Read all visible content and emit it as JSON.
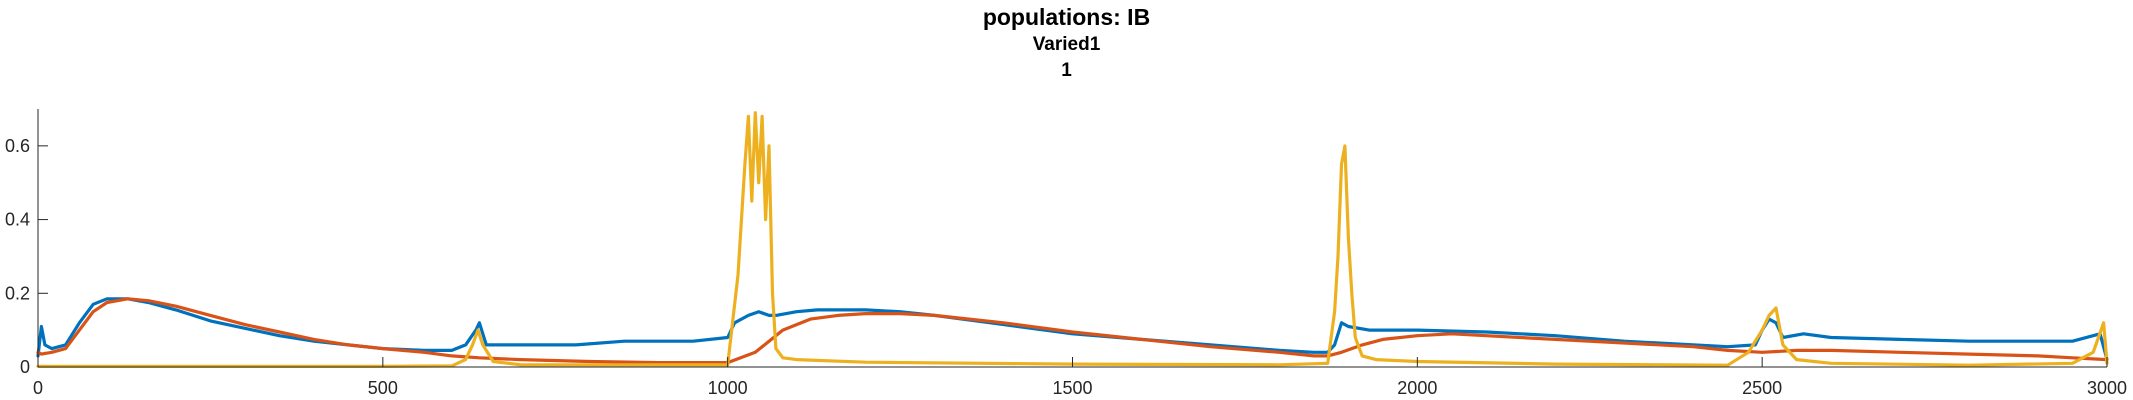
{
  "title": {
    "line1": "populations: IB",
    "line2": "Varied1",
    "line3": "1"
  },
  "colors": {
    "series1": "#0072BD",
    "series2": "#D95319",
    "series3": "#EDB120",
    "axis": "#262626"
  },
  "chart_data": {
    "type": "line",
    "title": "populations: IB",
    "subtitle": "Varied1 / 1",
    "xlabel": "",
    "ylabel": "",
    "xlim": [
      0,
      3000
    ],
    "ylim": [
      0,
      0.7
    ],
    "grid": false,
    "legend": "none",
    "xticks": [
      0,
      500,
      1000,
      1500,
      2000,
      2500,
      3000
    ],
    "yticks": [
      0,
      0.2,
      0.4,
      0.6
    ],
    "xtick_labels": [
      "0",
      "500",
      "1000",
      "1500",
      "2000",
      "2500",
      "3000"
    ],
    "ytick_labels": [
      "0",
      "0.2",
      "0.4",
      "0.6"
    ],
    "series": [
      {
        "color": "#0072BD",
        "x": [
          0,
          5,
          10,
          20,
          40,
          60,
          80,
          100,
          130,
          160,
          200,
          250,
          300,
          350,
          400,
          450,
          500,
          560,
          600,
          620,
          635,
          640,
          650,
          680,
          720,
          780,
          850,
          950,
          1000,
          1010,
          1030,
          1045,
          1060,
          1070,
          1100,
          1130,
          1160,
          1200,
          1250,
          1300,
          1400,
          1500,
          1600,
          1700,
          1800,
          1850,
          1870,
          1880,
          1890,
          1900,
          1930,
          1960,
          2000,
          2100,
          2200,
          2300,
          2400,
          2450,
          2490,
          2500,
          2510,
          2520,
          2530,
          2560,
          2600,
          2700,
          2800,
          2900,
          2950,
          2990,
          3000
        ],
        "y": [
          0.03,
          0.11,
          0.06,
          0.05,
          0.06,
          0.12,
          0.17,
          0.185,
          0.185,
          0.175,
          0.155,
          0.125,
          0.105,
          0.085,
          0.07,
          0.06,
          0.05,
          0.045,
          0.045,
          0.06,
          0.1,
          0.12,
          0.06,
          0.06,
          0.06,
          0.06,
          0.07,
          0.07,
          0.08,
          0.12,
          0.14,
          0.15,
          0.14,
          0.14,
          0.15,
          0.155,
          0.155,
          0.155,
          0.15,
          0.14,
          0.115,
          0.09,
          0.075,
          0.06,
          0.045,
          0.04,
          0.04,
          0.06,
          0.12,
          0.11,
          0.1,
          0.1,
          0.1,
          0.095,
          0.085,
          0.07,
          0.06,
          0.055,
          0.06,
          0.1,
          0.13,
          0.12,
          0.08,
          0.09,
          0.08,
          0.075,
          0.07,
          0.07,
          0.07,
          0.09,
          0.02
        ]
      },
      {
        "color": "#D95319",
        "x": [
          0,
          5,
          20,
          40,
          60,
          80,
          100,
          130,
          160,
          200,
          250,
          300,
          350,
          400,
          450,
          500,
          560,
          600,
          640,
          700,
          800,
          900,
          1000,
          1040,
          1080,
          1120,
          1160,
          1200,
          1250,
          1300,
          1400,
          1500,
          1600,
          1700,
          1800,
          1850,
          1870,
          1890,
          1920,
          1950,
          2000,
          2050,
          2100,
          2200,
          2300,
          2400,
          2450,
          2500,
          2550,
          2600,
          2700,
          2800,
          2900,
          2950,
          3000
        ],
        "y": [
          0.04,
          0.035,
          0.04,
          0.05,
          0.1,
          0.15,
          0.175,
          0.185,
          0.18,
          0.165,
          0.14,
          0.115,
          0.095,
          0.075,
          0.06,
          0.05,
          0.04,
          0.03,
          0.025,
          0.02,
          0.015,
          0.012,
          0.012,
          0.04,
          0.1,
          0.13,
          0.14,
          0.145,
          0.145,
          0.14,
          0.12,
          0.095,
          0.075,
          0.055,
          0.04,
          0.03,
          0.03,
          0.04,
          0.06,
          0.075,
          0.085,
          0.09,
          0.085,
          0.075,
          0.065,
          0.055,
          0.045,
          0.04,
          0.045,
          0.045,
          0.04,
          0.035,
          0.03,
          0.025,
          0.02
        ]
      },
      {
        "color": "#EDB120",
        "x": [
          0,
          500,
          600,
          620,
          630,
          638,
          645,
          660,
          700,
          1000,
          1015,
          1025,
          1030,
          1035,
          1040,
          1045,
          1050,
          1055,
          1060,
          1065,
          1070,
          1080,
          1100,
          1200,
          1500,
          1800,
          1870,
          1880,
          1885,
          1890,
          1895,
          1900,
          1905,
          1910,
          1920,
          1940,
          2000,
          2200,
          2450,
          2480,
          2500,
          2510,
          2520,
          2530,
          2550,
          2600,
          2800,
          2950,
          2980,
          2995,
          3000
        ],
        "y": [
          0.002,
          0.002,
          0.003,
          0.02,
          0.06,
          0.1,
          0.06,
          0.015,
          0.006,
          0.006,
          0.25,
          0.55,
          0.68,
          0.45,
          0.69,
          0.5,
          0.68,
          0.4,
          0.6,
          0.2,
          0.05,
          0.025,
          0.02,
          0.013,
          0.008,
          0.006,
          0.01,
          0.15,
          0.3,
          0.55,
          0.6,
          0.35,
          0.2,
          0.08,
          0.03,
          0.02,
          0.015,
          0.008,
          0.005,
          0.04,
          0.1,
          0.14,
          0.16,
          0.06,
          0.02,
          0.01,
          0.005,
          0.01,
          0.04,
          0.12,
          0.01
        ]
      }
    ]
  }
}
